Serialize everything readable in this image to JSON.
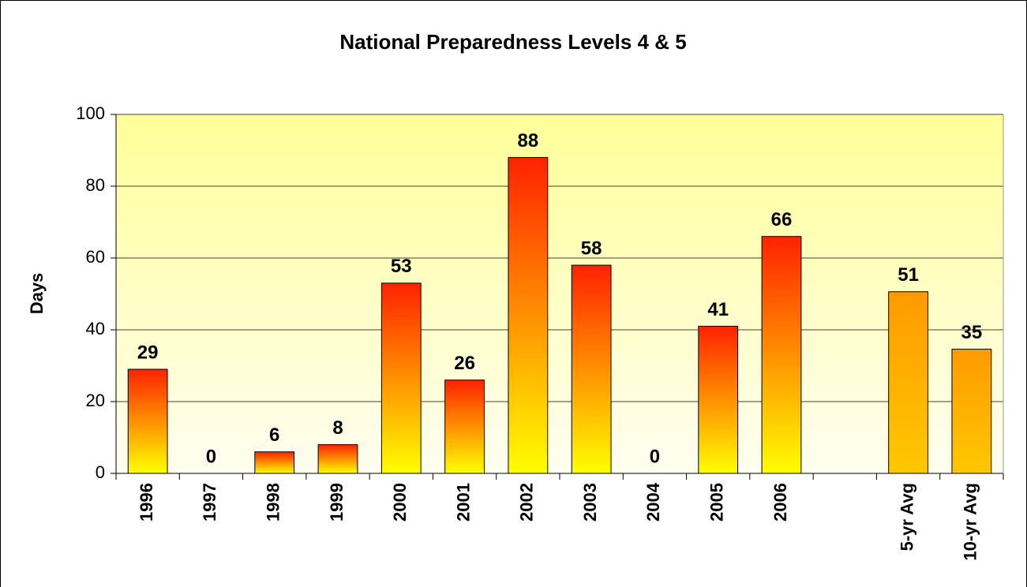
{
  "chart_data": {
    "type": "bar",
    "title": "National Preparedness Levels 4 & 5",
    "y_label": "Days",
    "categories": [
      "1996",
      "1997",
      "1998",
      "1999",
      "2000",
      "2001",
      "2002",
      "2003",
      "2004",
      "2005",
      "2006",
      null,
      "5-yr Avg",
      "10-yr Avg"
    ],
    "values": [
      29,
      0,
      6,
      8,
      53,
      26,
      88,
      58,
      0,
      41,
      66,
      null,
      50.6,
      34.6
    ],
    "value_labels": [
      "29",
      "0",
      "6",
      "8",
      "53",
      "26",
      "88",
      "58",
      "0",
      "41",
      "66",
      null,
      "51",
      "35"
    ],
    "colors": [
      "#ff2200",
      "#ff2200",
      "#ff2200",
      "#ff2200",
      "#ff2200",
      "#ff2200",
      "#ff2200",
      "#ff2200",
      "#ff2200",
      "#ff2200",
      "#ff2200",
      null,
      "#ff9a00",
      "#ff9a00"
    ],
    "bottom_colors": [
      "#ffff00",
      "#ffff00",
      "#ffff00",
      "#ffff00",
      "#ffff00",
      "#ffff00",
      "#ffff00",
      "#ffff00",
      "#ffff00",
      "#ffff00",
      "#ffff00",
      null,
      "#ffc800",
      "#ffc800"
    ],
    "ylim": [
      0,
      100
    ],
    "yticks": [
      0,
      20,
      40,
      60,
      80,
      100
    ],
    "grid": true
  }
}
